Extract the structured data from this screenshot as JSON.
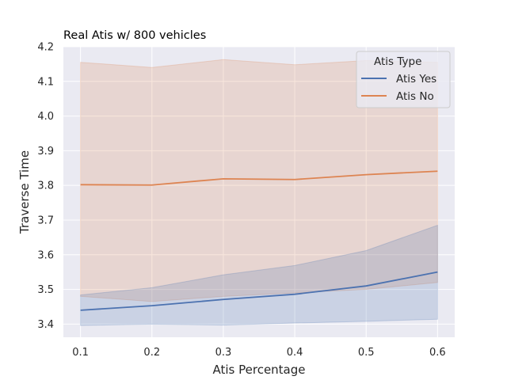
{
  "chart_data": {
    "type": "line",
    "title": "Real Atis w/ 800 vehicles",
    "xlabel": "Atis Percentage",
    "ylabel": "Traverse Time",
    "xlim": [
      0.076,
      0.624
    ],
    "ylim": [
      3.362,
      4.2
    ],
    "xticks": [
      0.1,
      0.2,
      0.3,
      0.4,
      0.5,
      0.6
    ],
    "xtick_labels": [
      "0.1",
      "0.2",
      "0.3",
      "0.4",
      "0.5",
      "0.6"
    ],
    "yticks": [
      3.4,
      3.5,
      3.6,
      3.7,
      3.8,
      3.9,
      4.0,
      4.1,
      4.2
    ],
    "ytick_labels": [
      "3.4",
      "3.5",
      "3.6",
      "3.7",
      "3.8",
      "3.9",
      "4.0",
      "4.1",
      "4.2"
    ],
    "grid": true,
    "legend": {
      "title": "Atis Type",
      "placement": "top-right"
    },
    "x": [
      0.1,
      0.2,
      0.3,
      0.4,
      0.5,
      0.6
    ],
    "series": [
      {
        "name": "Atis Yes",
        "color": "#4c72b0",
        "values": [
          3.44,
          3.453,
          3.471,
          3.486,
          3.51,
          3.55
        ],
        "ci_lower": [
          3.396,
          3.4,
          3.397,
          3.403,
          3.408,
          3.414
        ],
        "ci_upper": [
          3.484,
          3.505,
          3.542,
          3.569,
          3.612,
          3.685
        ]
      },
      {
        "name": "Atis No",
        "color": "#dd8452",
        "values": [
          3.802,
          3.801,
          3.819,
          3.817,
          3.831,
          3.841
        ],
        "ci_lower": [
          3.48,
          3.465,
          3.48,
          3.49,
          3.5,
          3.52
        ],
        "ci_upper": [
          4.155,
          4.14,
          4.163,
          4.148,
          4.16,
          4.155
        ]
      }
    ]
  }
}
